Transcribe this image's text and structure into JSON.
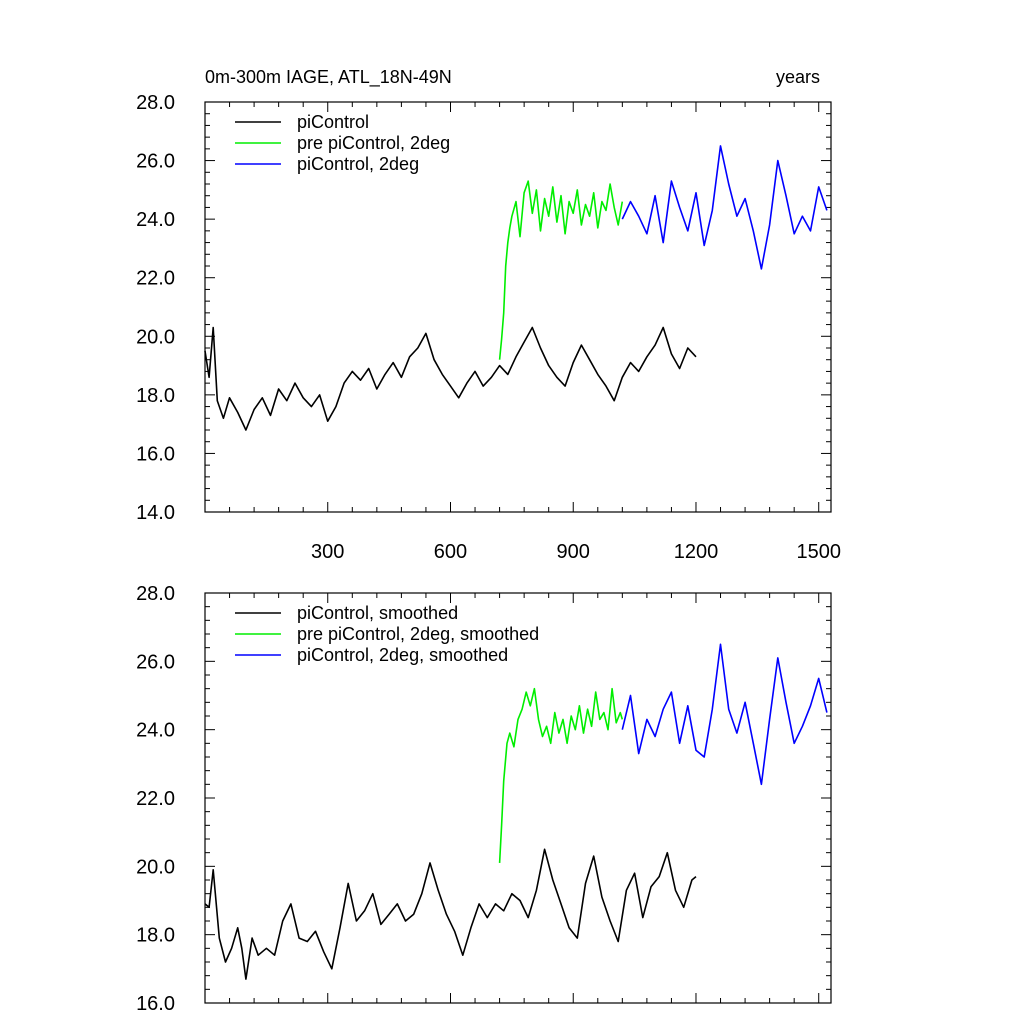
{
  "chart_data": [
    {
      "type": "line",
      "title_left": "0m-300m IAGE, ATL_18N-49N",
      "title_right": "years",
      "xlabel": "",
      "ylabel": "",
      "xlim": [
        0,
        1530
      ],
      "ylim": [
        14,
        28
      ],
      "xticks": [
        300,
        600,
        900,
        1200,
        1500
      ],
      "yticks": [
        14.0,
        16.0,
        18.0,
        20.0,
        22.0,
        24.0,
        26.0,
        28.0
      ],
      "xtick_labels": [
        "300",
        "600",
        "900",
        "1200",
        "1500"
      ],
      "ytick_labels": [
        "14.0",
        "16.0",
        "18.0",
        "20.0",
        "22.0",
        "24.0",
        "26.0",
        "28.0"
      ],
      "legend_position": "top-left",
      "series": [
        {
          "name": "piControl",
          "color": "#000000",
          "x": [
            0,
            10,
            20,
            30,
            45,
            60,
            80,
            100,
            120,
            140,
            160,
            180,
            200,
            220,
            240,
            260,
            280,
            300,
            320,
            340,
            360,
            380,
            400,
            420,
            440,
            460,
            480,
            500,
            520,
            540,
            560,
            580,
            600,
            620,
            640,
            660,
            680,
            700,
            720,
            740,
            760,
            780,
            800,
            820,
            840,
            860,
            880,
            900,
            920,
            940,
            960,
            980,
            1000,
            1020,
            1040,
            1060,
            1080,
            1100,
            1120,
            1140,
            1160,
            1180,
            1200
          ],
          "y": [
            19.5,
            18.6,
            20.3,
            17.8,
            17.2,
            17.9,
            17.4,
            16.8,
            17.5,
            17.9,
            17.3,
            18.2,
            17.8,
            18.4,
            17.9,
            17.6,
            18.0,
            17.1,
            17.6,
            18.4,
            18.8,
            18.5,
            18.9,
            18.2,
            18.7,
            19.1,
            18.6,
            19.3,
            19.6,
            20.1,
            19.2,
            18.7,
            18.3,
            17.9,
            18.4,
            18.8,
            18.3,
            18.6,
            19.0,
            18.7,
            19.3,
            19.8,
            20.3,
            19.6,
            19.0,
            18.6,
            18.3,
            19.1,
            19.7,
            19.2,
            18.7,
            18.3,
            17.8,
            18.6,
            19.1,
            18.8,
            19.3,
            19.7,
            20.3,
            19.4,
            18.9,
            19.6,
            19.3
          ]
        },
        {
          "name": "pre piControl, 2deg",
          "color": "#00ee00",
          "x": [
            720,
            725,
            730,
            735,
            740,
            745,
            750,
            760,
            770,
            780,
            790,
            800,
            810,
            820,
            830,
            840,
            850,
            860,
            870,
            880,
            890,
            900,
            910,
            920,
            930,
            940,
            950,
            960,
            970,
            980,
            990,
            1000,
            1010,
            1020
          ],
          "y": [
            19.2,
            19.9,
            20.8,
            22.4,
            23.2,
            23.7,
            24.1,
            24.6,
            23.4,
            24.9,
            25.3,
            24.2,
            25.0,
            23.6,
            24.7,
            24.1,
            25.1,
            23.9,
            24.8,
            23.5,
            24.6,
            24.2,
            25.0,
            23.8,
            24.5,
            24.1,
            24.9,
            23.7,
            24.6,
            24.3,
            25.2,
            24.4,
            23.8,
            24.6
          ]
        },
        {
          "name": "piControl, 2deg",
          "color": "#0000ff",
          "x": [
            1020,
            1040,
            1060,
            1080,
            1100,
            1120,
            1140,
            1160,
            1180,
            1200,
            1220,
            1240,
            1260,
            1280,
            1300,
            1320,
            1340,
            1360,
            1380,
            1400,
            1420,
            1440,
            1460,
            1480,
            1500,
            1520
          ],
          "y": [
            24.0,
            24.6,
            24.1,
            23.5,
            24.8,
            23.2,
            25.3,
            24.4,
            23.6,
            24.9,
            23.1,
            24.3,
            26.5,
            25.2,
            24.1,
            24.7,
            23.6,
            22.3,
            23.8,
            26.0,
            24.8,
            23.5,
            24.1,
            23.6,
            25.1,
            24.3
          ]
        }
      ]
    },
    {
      "type": "line",
      "title_left": "",
      "title_right": "",
      "xlabel": "",
      "ylabel": "",
      "xlim": [
        0,
        1530
      ],
      "ylim": [
        16,
        28
      ],
      "xticks": [
        300,
        600,
        900,
        1200,
        1500
      ],
      "yticks": [
        16.0,
        18.0,
        20.0,
        22.0,
        24.0,
        26.0,
        28.0
      ],
      "xtick_labels": [],
      "ytick_labels": [
        "16.0",
        "18.0",
        "20.0",
        "22.0",
        "24.0",
        "26.0",
        "28.0"
      ],
      "legend_position": "top-left",
      "series": [
        {
          "name": "piControl, smoothed",
          "color": "#000000",
          "x": [
            0,
            10,
            20,
            35,
            50,
            65,
            80,
            90,
            100,
            115,
            130,
            150,
            170,
            190,
            210,
            230,
            250,
            270,
            290,
            310,
            330,
            350,
            370,
            390,
            410,
            430,
            450,
            470,
            490,
            510,
            530,
            550,
            570,
            590,
            610,
            630,
            650,
            670,
            690,
            710,
            730,
            750,
            770,
            790,
            810,
            830,
            850,
            870,
            890,
            910,
            930,
            950,
            970,
            990,
            1010,
            1030,
            1050,
            1070,
            1090,
            1110,
            1130,
            1150,
            1170,
            1190,
            1200
          ],
          "y": [
            18.9,
            18.8,
            19.9,
            17.9,
            17.2,
            17.6,
            18.2,
            17.6,
            16.7,
            17.9,
            17.4,
            17.6,
            17.4,
            18.4,
            18.9,
            17.9,
            17.8,
            18.1,
            17.5,
            17.0,
            18.2,
            19.5,
            18.4,
            18.7,
            19.2,
            18.3,
            18.6,
            18.9,
            18.4,
            18.6,
            19.2,
            20.1,
            19.3,
            18.6,
            18.1,
            17.4,
            18.2,
            18.9,
            18.5,
            18.9,
            18.7,
            19.2,
            19.0,
            18.5,
            19.3,
            20.5,
            19.6,
            18.9,
            18.2,
            17.9,
            19.5,
            20.3,
            19.1,
            18.4,
            17.8,
            19.3,
            19.8,
            18.5,
            19.4,
            19.7,
            20.4,
            19.3,
            18.8,
            19.6,
            19.7
          ]
        },
        {
          "name": "pre piControl, 2deg, smoothed",
          "color": "#00ee00",
          "x": [
            720,
            725,
            730,
            738,
            745,
            755,
            765,
            775,
            785,
            795,
            805,
            815,
            825,
            835,
            845,
            855,
            865,
            875,
            885,
            895,
            905,
            915,
            925,
            935,
            945,
            955,
            965,
            975,
            985,
            995,
            1005,
            1015,
            1020
          ],
          "y": [
            20.1,
            21.2,
            22.5,
            23.6,
            23.9,
            23.5,
            24.3,
            24.6,
            25.1,
            24.7,
            25.2,
            24.3,
            23.8,
            24.1,
            23.6,
            24.5,
            23.9,
            24.3,
            23.6,
            24.4,
            24.0,
            24.7,
            23.9,
            24.6,
            24.1,
            25.1,
            24.3,
            24.5,
            24.0,
            25.2,
            24.2,
            24.5,
            24.3
          ]
        },
        {
          "name": "piControl, 2deg, smoothed",
          "color": "#0000ff",
          "x": [
            1020,
            1040,
            1060,
            1080,
            1100,
            1120,
            1140,
            1160,
            1180,
            1200,
            1220,
            1240,
            1260,
            1280,
            1300,
            1320,
            1340,
            1360,
            1380,
            1400,
            1420,
            1440,
            1460,
            1480,
            1500,
            1520
          ],
          "y": [
            24.0,
            25.0,
            23.3,
            24.3,
            23.8,
            24.6,
            25.1,
            23.6,
            24.7,
            23.4,
            23.2,
            24.6,
            26.5,
            24.6,
            23.9,
            24.8,
            23.6,
            22.4,
            24.3,
            26.1,
            24.8,
            23.6,
            24.1,
            24.7,
            25.5,
            24.5
          ]
        }
      ]
    }
  ]
}
